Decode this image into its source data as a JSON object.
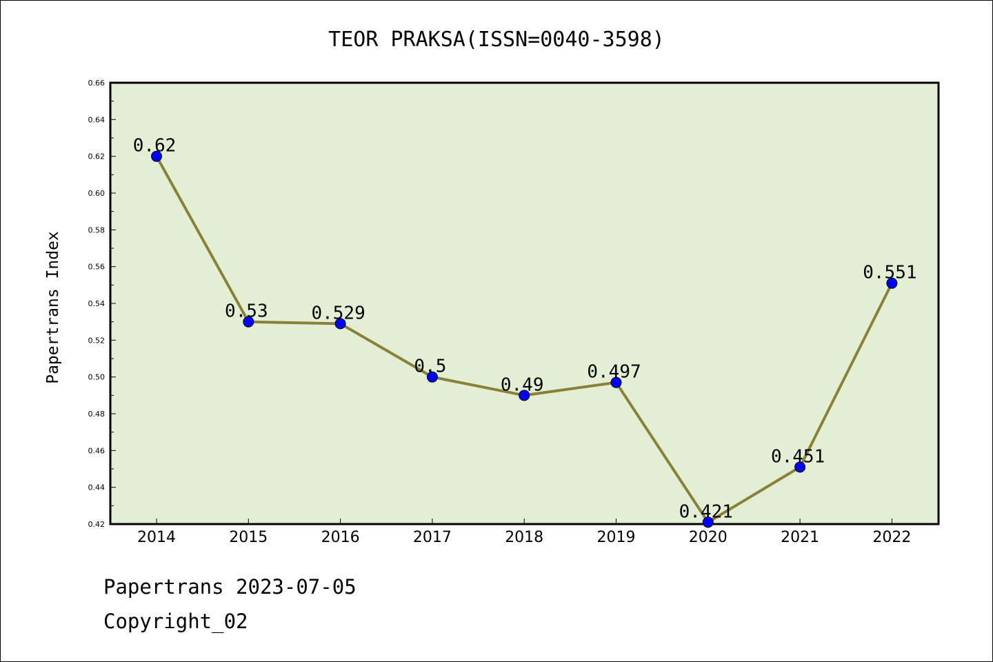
{
  "chart_data": {
    "type": "line",
    "title": "TEOR PRAKSA(ISSN=0040-3598)",
    "xlabel": "",
    "ylabel": "Papertrans Index",
    "categories": [
      "2014",
      "2015",
      "2016",
      "2017",
      "2018",
      "2019",
      "2020",
      "2021",
      "2022"
    ],
    "values": [
      0.62,
      0.53,
      0.529,
      0.5,
      0.49,
      0.497,
      0.421,
      0.451,
      0.551
    ],
    "data_labels": [
      "0.62",
      "0.53",
      "0.529",
      "0.5",
      "0.49",
      "0.497",
      "0.421",
      "0.451",
      "0.551"
    ],
    "ylim": [
      0.42,
      0.66
    ],
    "yticks": [
      "0.42",
      "0.44",
      "0.46",
      "0.48",
      "0.50",
      "0.52",
      "0.54",
      "0.56",
      "0.58",
      "0.60",
      "0.62",
      "0.64",
      "0.66"
    ],
    "grid": false,
    "colors": {
      "plot_background": "#e2efd5",
      "line": "#8b8038",
      "marker": "#0000ff"
    }
  },
  "footer": {
    "date_line": "Papertrans 2023-07-05",
    "copyright": "Copyright_02"
  }
}
